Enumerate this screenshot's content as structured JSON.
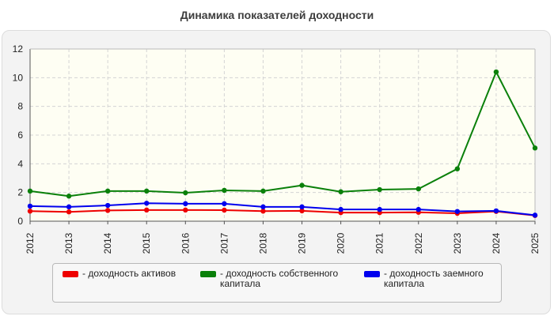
{
  "chart_data": {
    "type": "line",
    "title": "Динамика показателей доходности",
    "xlabel": "",
    "ylabel": "",
    "x": [
      "2012",
      "2013",
      "2014",
      "2015",
      "2016",
      "2017",
      "2018",
      "2019",
      "2020",
      "2021",
      "2022",
      "2023",
      "2024",
      "2025"
    ],
    "ylim": [
      0,
      12
    ],
    "yticks": [
      0,
      2,
      4,
      6,
      8,
      10,
      12
    ],
    "grid": true,
    "legend_position": "bottom",
    "series": [
      {
        "name": "- доходность активов",
        "color": "#ee0000",
        "values": [
          0.7,
          0.65,
          0.75,
          0.78,
          0.78,
          0.77,
          0.7,
          0.72,
          0.6,
          0.6,
          0.62,
          0.55,
          0.68,
          0.4
        ]
      },
      {
        "name": "- доходность собственного капитала",
        "color": "#0a800a",
        "values": [
          2.1,
          1.75,
          2.1,
          2.1,
          1.98,
          2.15,
          2.1,
          2.5,
          2.05,
          2.2,
          2.25,
          3.65,
          10.4,
          5.1
        ]
      },
      {
        "name": "- доходность заемного капитала",
        "color": "#0000ee",
        "values": [
          1.05,
          1.0,
          1.1,
          1.25,
          1.22,
          1.22,
          1.0,
          1.0,
          0.82,
          0.82,
          0.82,
          0.68,
          0.72,
          0.42
        ]
      }
    ]
  }
}
